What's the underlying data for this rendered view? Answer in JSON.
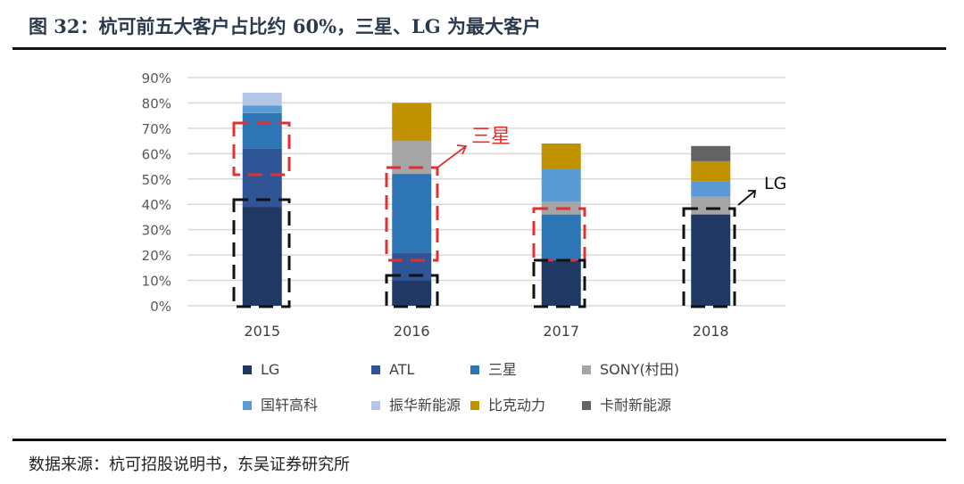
{
  "title": "图 32：杭可前五大客户占比约 60%，三星、LG 为最大客户",
  "source": "数据来源：杭可招股说明书，东吴证券研究所",
  "chart_data": {
    "type": "bar",
    "stacked": true,
    "title": "",
    "xlabel": "",
    "ylabel": "",
    "ylim": [
      0,
      90
    ],
    "yticks": [
      "0%",
      "10%",
      "20%",
      "30%",
      "40%",
      "50%",
      "60%",
      "70%",
      "80%",
      "90%"
    ],
    "grid": true,
    "legend_position": "bottom",
    "categories": [
      "2015",
      "2016",
      "2017",
      "2018"
    ],
    "series": [
      {
        "name": "LG",
        "color": "#203864",
        "values": [
          39,
          10,
          18,
          36
        ]
      },
      {
        "name": "ATL",
        "color": "#2f5597",
        "values": [
          23,
          11,
          0,
          0
        ]
      },
      {
        "name": "三星",
        "color": "#2e75b6",
        "values": [
          14,
          31,
          18,
          0
        ]
      },
      {
        "name": "SONY(村田)",
        "color": "#a5a5a5",
        "values": [
          0,
          13,
          5,
          7
        ]
      },
      {
        "name": "国轩高科",
        "color": "#5b9bd5",
        "values": [
          3,
          0,
          13,
          6
        ]
      },
      {
        "name": "振华新能源",
        "color": "#b4c7e7",
        "values": [
          5,
          0,
          0,
          0
        ]
      },
      {
        "name": "比克动力",
        "color": "#c09200",
        "values": [
          0,
          15,
          10,
          8
        ]
      },
      {
        "name": "卡耐新能源",
        "color": "#636363",
        "values": [
          0,
          0,
          0,
          6
        ]
      }
    ],
    "annotations": [
      {
        "text": "三星",
        "color": "#e03030"
      },
      {
        "text": "LG",
        "color": "#111111"
      }
    ]
  }
}
